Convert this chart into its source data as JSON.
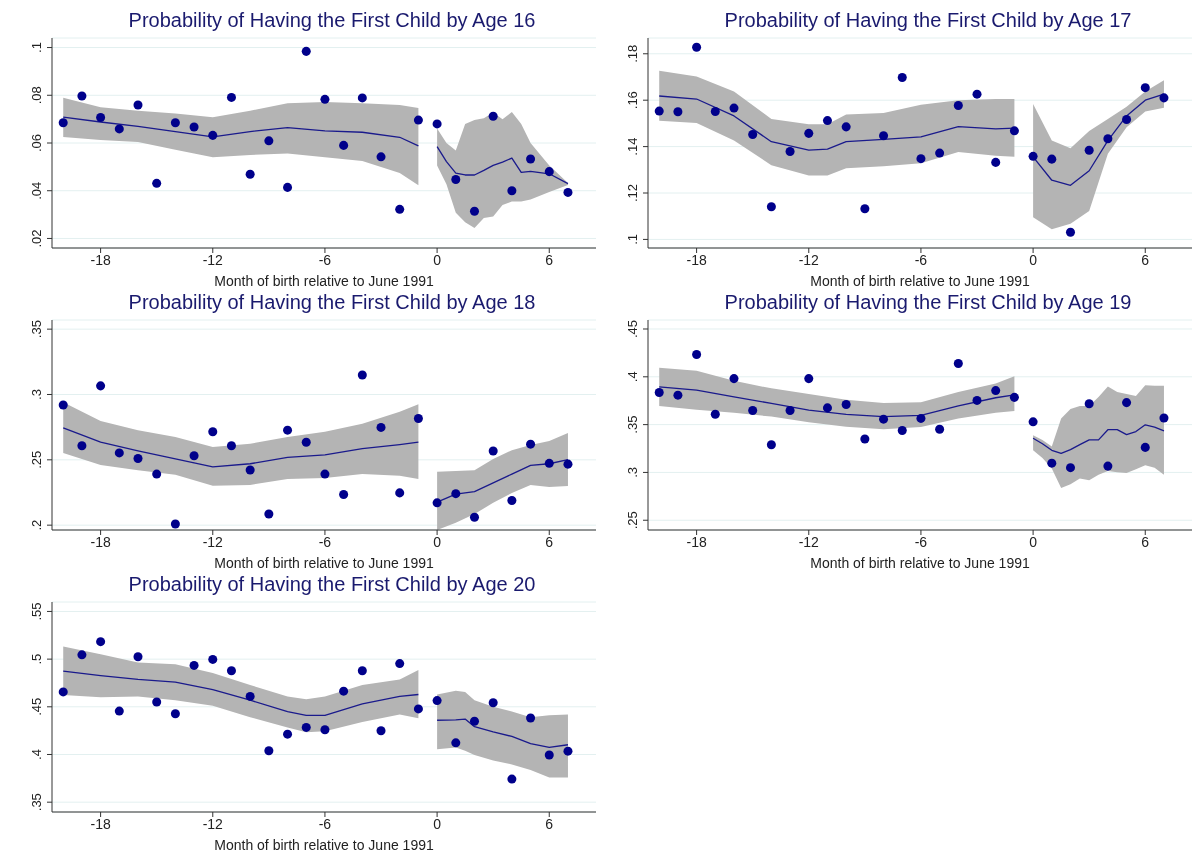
{
  "chart_data": [
    {
      "type": "scatter",
      "title": "Probability of Having the First Child by Age 16",
      "xlabel": "Month of birth relative to June 1991",
      "xlim": [
        -20.6,
        8.5
      ],
      "xticks": [
        -18,
        -12,
        -6,
        0,
        6
      ],
      "ylim": [
        0.016,
        0.104
      ],
      "yticks": [
        {
          "value": 0.02,
          "label": ".02"
        },
        {
          "value": 0.04,
          "label": ".04"
        },
        {
          "value": 0.06,
          "label": ".06"
        },
        {
          "value": 0.08,
          "label": ".08"
        },
        {
          "value": 0.1,
          "label": ".1"
        }
      ],
      "grid": "y",
      "legend": false,
      "series": [
        {
          "type": "line",
          "color": "#1a1a8c",
          "marker": "none",
          "line_style": "solid",
          "x": [
            -20,
            -18,
            -16,
            -14,
            -12,
            -10,
            -8,
            -6,
            -4,
            -2,
            -1
          ],
          "values": [
            0.0708,
            0.0688,
            0.067,
            0.0648,
            0.0626,
            0.0648,
            0.0664,
            0.0651,
            0.0645,
            0.0624,
            0.0588
          ],
          "lower": [
            0.0625,
            0.0613,
            0.0604,
            0.0572,
            0.054,
            0.055,
            0.0556,
            0.054,
            0.0525,
            0.0474,
            0.0423
          ],
          "upper": [
            0.079,
            0.075,
            0.0735,
            0.0724,
            0.0708,
            0.0735,
            0.0767,
            0.0772,
            0.0767,
            0.0759,
            0.0747
          ]
        },
        {
          "type": "line",
          "color": "#1a1a8c",
          "marker": "none",
          "line_style": "solid",
          "x": [
            0,
            0.5,
            1,
            1.5,
            2,
            2.5,
            3,
            3.5,
            4,
            4.5,
            5,
            6,
            7
          ],
          "values": [
            0.0585,
            0.0522,
            0.0474,
            0.0466,
            0.0466,
            0.0485,
            0.0506,
            0.052,
            0.0537,
            0.0477,
            0.0481,
            0.0471,
            0.043
          ],
          "lower": [
            0.0506,
            0.0427,
            0.0308,
            0.0268,
            0.0244,
            0.0286,
            0.0292,
            0.034,
            0.0355,
            0.0355,
            0.0363,
            0.0395,
            0.0424
          ],
          "upper": [
            0.0661,
            0.06,
            0.0569,
            0.068,
            0.0696,
            0.0704,
            0.0728,
            0.07,
            0.073,
            0.068,
            0.06,
            0.0506,
            0.0432
          ]
        },
        {
          "color": "#00008b",
          "marker": "circle",
          "x": [
            -20,
            -19,
            -18,
            -17,
            -16,
            -15,
            -14,
            -13,
            -12,
            -11,
            -10,
            -9,
            -8,
            -7,
            -6,
            -5,
            -4,
            -3,
            -2,
            -1,
            0,
            1,
            2,
            3,
            4,
            5,
            6,
            7
          ],
          "values": [
            0.0685,
            0.0797,
            0.0707,
            0.0659,
            0.0759,
            0.0431,
            0.0685,
            0.0667,
            0.0632,
            0.0791,
            0.0469,
            0.0609,
            0.0414,
            0.0984,
            0.0783,
            0.059,
            0.0789,
            0.0542,
            0.0322,
            0.0696,
            0.068,
            0.0447,
            0.0314,
            0.0712,
            0.04,
            0.0533,
            0.048,
            0.0393
          ]
        }
      ]
    },
    {
      "type": "scatter",
      "title": "Probability of Having the First Child by Age 17",
      "xlabel": "Month of birth relative to June 1991",
      "xlim": [
        -20.6,
        8.5
      ],
      "xticks": [
        -18,
        -12,
        -6,
        0,
        6
      ],
      "ylim": [
        0.0963,
        0.1868
      ],
      "yticks": [
        {
          "value": 0.1,
          "label": ".1"
        },
        {
          "value": 0.12,
          "label": ".12"
        },
        {
          "value": 0.14,
          "label": ".14"
        },
        {
          "value": 0.16,
          "label": ".16"
        },
        {
          "value": 0.18,
          "label": ".18"
        }
      ],
      "grid": "y",
      "legend": false,
      "series": [
        {
          "type": "line",
          "color": "#1a1a8c",
          "marker": "none",
          "line_style": "solid",
          "x": [
            -20,
            -18,
            -16,
            -14,
            -12,
            -11,
            -10,
            -8,
            -6,
            -4,
            -2,
            -1
          ],
          "values": [
            0.1618,
            0.1605,
            0.1532,
            0.1421,
            0.1385,
            0.1389,
            0.1421,
            0.1431,
            0.1442,
            0.1486,
            0.1476,
            0.148
          ],
          "lower": [
            0.1511,
            0.1502,
            0.1426,
            0.132,
            0.1275,
            0.1275,
            0.1307,
            0.1315,
            0.1328,
            0.1377,
            0.1361,
            0.1356
          ],
          "upper": [
            0.1727,
            0.1702,
            0.1637,
            0.1519,
            0.1496,
            0.1496,
            0.1538,
            0.1545,
            0.158,
            0.16,
            0.1605,
            0.1605
          ]
        },
        {
          "type": "line",
          "color": "#1a1a8c",
          "marker": "none",
          "line_style": "solid",
          "x": [
            0,
            1,
            2,
            3,
            4,
            5,
            6,
            7
          ],
          "values": [
            0.1356,
            0.1255,
            0.1233,
            0.1296,
            0.1426,
            0.1532,
            0.16,
            0.1626
          ],
          "lower": [
            0.1096,
            0.1044,
            0.1068,
            0.1122,
            0.1369,
            0.1483,
            0.1551,
            0.1567
          ],
          "upper": [
            0.1584,
            0.1426,
            0.1393,
            0.1467,
            0.1519,
            0.1572,
            0.1637,
            0.1686
          ]
        },
        {
          "color": "#00008b",
          "marker": "circle",
          "x": [
            -20,
            -19,
            -18,
            -17,
            -16,
            -15,
            -14,
            -13,
            -12,
            -11,
            -10,
            -9,
            -8,
            -7,
            -6,
            -5,
            -4,
            -3,
            -2,
            -1,
            0,
            1,
            2,
            3,
            4,
            5,
            6,
            7
          ],
          "values": [
            0.1553,
            0.155,
            0.1828,
            0.1551,
            0.1566,
            0.1452,
            0.1141,
            0.1379,
            0.1457,
            0.1512,
            0.1485,
            0.1132,
            0.1447,
            0.1698,
            0.1348,
            0.1372,
            0.1577,
            0.1626,
            0.1332,
            0.1468,
            0.1358,
            0.1346,
            0.1031,
            0.1384,
            0.1434,
            0.1517,
            0.1654,
            0.161
          ]
        }
      ]
    },
    {
      "type": "scatter",
      "title": "Probability of Having the First Child by Age 18",
      "xlabel": "Month of birth relative to June 1991",
      "xlim": [
        -20.6,
        8.5
      ],
      "xticks": [
        -18,
        -12,
        -6,
        0,
        6
      ],
      "ylim": [
        0.1963,
        0.357
      ],
      "yticks": [
        {
          "value": 0.2,
          "label": ".2"
        },
        {
          "value": 0.25,
          "label": ".25"
        },
        {
          "value": 0.3,
          "label": ".3"
        },
        {
          "value": 0.35,
          "label": ".35"
        }
      ],
      "grid": "y",
      "legend": false,
      "series": [
        {
          "type": "line",
          "color": "#1a1a8c",
          "marker": "none",
          "line_style": "solid",
          "x": [
            -20,
            -18,
            -16,
            -14,
            -12,
            -10,
            -8,
            -6,
            -4,
            -2,
            -1
          ],
          "values": [
            0.2745,
            0.2635,
            0.2568,
            0.2507,
            0.2446,
            0.247,
            0.2519,
            0.2538,
            0.2586,
            0.2617,
            0.2635
          ],
          "lower": [
            0.2553,
            0.2461,
            0.2421,
            0.2385,
            0.2302,
            0.2308,
            0.2354,
            0.236,
            0.2391,
            0.2379,
            0.2354
          ],
          "upper": [
            0.2941,
            0.2797,
            0.2727,
            0.2675,
            0.2599,
            0.2623,
            0.2675,
            0.2715,
            0.2776,
            0.2868,
            0.2926
          ]
        },
        {
          "type": "line",
          "color": "#1a1a8c",
          "marker": "none",
          "line_style": "solid",
          "x": [
            0,
            1,
            2,
            3,
            4,
            5,
            6,
            7
          ],
          "values": [
            0.2177,
            0.2238,
            0.2257,
            0.2324,
            0.2391,
            0.2458,
            0.247,
            0.2501
          ],
          "lower": [
            0.1963,
            0.2018,
            0.2085,
            0.2171,
            0.2247,
            0.2308,
            0.2293,
            0.2299
          ],
          "upper": [
            0.2409,
            0.2415,
            0.2421,
            0.2507,
            0.2574,
            0.2614,
            0.2645,
            0.2706
          ]
        },
        {
          "color": "#00008b",
          "marker": "circle",
          "x": [
            -20,
            -19,
            -18,
            -17,
            -16,
            -15,
            -14,
            -13,
            -12,
            -11,
            -10,
            -9,
            -8,
            -7,
            -6,
            -5,
            -4,
            -3,
            -2,
            -1,
            0,
            1,
            2,
            3,
            4,
            5,
            6,
            7
          ],
          "values": [
            0.292,
            0.2608,
            0.3066,
            0.2553,
            0.251,
            0.2391,
            0.2009,
            0.2531,
            0.2715,
            0.2608,
            0.2422,
            0.2085,
            0.2727,
            0.2635,
            0.2391,
            0.2235,
            0.3149,
            0.2748,
            0.2247,
            0.2816,
            0.2171,
            0.2241,
            0.2061,
            0.2568,
            0.2189,
            0.262,
            0.2473,
            0.2467
          ]
        }
      ]
    },
    {
      "type": "scatter",
      "title": "Probability of Having the First Child by Age 19",
      "xlabel": "Month of birth relative to June 1991",
      "xlim": [
        -20.6,
        8.5
      ],
      "xticks": [
        -18,
        -12,
        -6,
        0,
        6
      ],
      "ylim": [
        0.2398,
        0.4594
      ],
      "yticks": [
        {
          "value": 0.25,
          "label": ".25"
        },
        {
          "value": 0.3,
          "label": ".3"
        },
        {
          "value": 0.35,
          "label": ".35"
        },
        {
          "value": 0.4,
          "label": ".4"
        },
        {
          "value": 0.45,
          "label": ".45"
        }
      ],
      "grid": "y",
      "legend": false,
      "series": [
        {
          "type": "line",
          "color": "#1a1a8c",
          "marker": "none",
          "line_style": "solid",
          "x": [
            -20,
            -18,
            -16,
            -14,
            -12,
            -10,
            -8,
            -6,
            -4,
            -2,
            -1
          ],
          "values": [
            0.3895,
            0.386,
            0.3789,
            0.3722,
            0.3651,
            0.3608,
            0.3584,
            0.3596,
            0.3695,
            0.3781,
            0.3812
          ],
          "lower": [
            0.3695,
            0.3655,
            0.3624,
            0.3584,
            0.3525,
            0.3478,
            0.3451,
            0.3474,
            0.3565,
            0.3624,
            0.3643
          ],
          "upper": [
            0.4095,
            0.4064,
            0.3958,
            0.3879,
            0.382,
            0.3761,
            0.3726,
            0.3734,
            0.384,
            0.393,
            0.4005
          ]
        },
        {
          "type": "line",
          "color": "#1a1a8c",
          "marker": "none",
          "line_style": "solid",
          "x": [
            0,
            0.5,
            1,
            1.5,
            2,
            2.5,
            3,
            3.5,
            4,
            4.5,
            5,
            5.5,
            6,
            6.5,
            7
          ],
          "values": [
            0.3357,
            0.33,
            0.3231,
            0.32,
            0.3239,
            0.329,
            0.3341,
            0.3341,
            0.3447,
            0.3447,
            0.3396,
            0.3427,
            0.3498,
            0.3474,
            0.3435
          ],
          "lower": [
            0.3231,
            0.315,
            0.3042,
            0.2838,
            0.2877,
            0.2936,
            0.2917,
            0.2975,
            0.3015,
            0.3003,
            0.2995,
            0.3034,
            0.3074,
            0.305,
            0.2975
          ],
          "upper": [
            0.339,
            0.334,
            0.327,
            0.3565,
            0.3663,
            0.3694,
            0.3694,
            0.3789,
            0.3899,
            0.384,
            0.382,
            0.38,
            0.3911,
            0.3907,
            0.3907
          ]
        },
        {
          "color": "#00008b",
          "marker": "circle",
          "x": [
            -20,
            -19,
            -18,
            -17,
            -16,
            -15,
            -14,
            -13,
            -12,
            -11,
            -10,
            -9,
            -8,
            -7,
            -6,
            -5,
            -4,
            -3,
            -2,
            -1,
            0,
            1,
            2,
            3,
            4,
            5,
            6,
            7
          ],
          "values": [
            0.3836,
            0.3808,
            0.4233,
            0.3608,
            0.3981,
            0.3647,
            0.329,
            0.3647,
            0.3981,
            0.3675,
            0.371,
            0.3349,
            0.3557,
            0.3439,
            0.3565,
            0.3451,
            0.4139,
            0.3753,
            0.3856,
            0.3785,
            0.3529,
            0.3097,
            0.305,
            0.3718,
            0.3066,
            0.373,
            0.3262,
            0.3569
          ]
        }
      ]
    },
    {
      "type": "scatter",
      "title": "Probability of Having the First Child by Age 20",
      "xlabel": "Month of birth relative to June 1991",
      "xlim": [
        -20.6,
        8.5
      ],
      "xticks": [
        -18,
        -12,
        -6,
        0,
        6
      ],
      "ylim": [
        0.3397,
        0.5599
      ],
      "yticks": [
        {
          "value": 0.35,
          "label": ".35"
        },
        {
          "value": 0.4,
          "label": ".4"
        },
        {
          "value": 0.45,
          "label": ".45"
        },
        {
          "value": 0.5,
          "label": ".5"
        },
        {
          "value": 0.55,
          "label": ".55"
        }
      ],
      "grid": "y",
      "legend": false,
      "series": [
        {
          "type": "line",
          "color": "#1a1a8c",
          "marker": "none",
          "line_style": "solid",
          "x": [
            -20,
            -18,
            -16,
            -14,
            -12,
            -10,
            -8,
            -7,
            -6,
            -4,
            -2,
            -1
          ],
          "values": [
            0.4874,
            0.4827,
            0.4787,
            0.4759,
            0.468,
            0.4569,
            0.445,
            0.4411,
            0.4411,
            0.453,
            0.4609,
            0.4629
          ],
          "lower": [
            0.4625,
            0.4601,
            0.4609,
            0.4569,
            0.451,
            0.4391,
            0.4284,
            0.4233,
            0.4244,
            0.434,
            0.4419,
            0.4379
          ],
          "upper": [
            0.5132,
            0.5052,
            0.4965,
            0.4946,
            0.4854,
            0.4728,
            0.4609,
            0.4578,
            0.4609,
            0.4728,
            0.4787,
            0.4886
          ]
        },
        {
          "type": "line",
          "color": "#1a1a8c",
          "marker": "none",
          "line_style": "solid",
          "x": [
            0,
            1,
            1.5,
            2,
            3,
            4,
            5,
            6,
            7
          ],
          "values": [
            0.4359,
            0.4363,
            0.4371,
            0.4292,
            0.4237,
            0.4189,
            0.4114,
            0.4074,
            0.4102
          ],
          "lower": [
            0.4054,
            0.4074,
            0.404,
            0.3995,
            0.3936,
            0.3896,
            0.3837,
            0.3758,
            0.3758
          ],
          "upper": [
            0.4629,
            0.4668,
            0.4656,
            0.4569,
            0.45,
            0.445,
            0.4391,
            0.4411,
            0.4419
          ]
        },
        {
          "color": "#00008b",
          "marker": "circle",
          "x": [
            -20,
            -19,
            -18,
            -17,
            -16,
            -15,
            -14,
            -13,
            -12,
            -11,
            -10,
            -9,
            -8,
            -7,
            -6,
            -5,
            -4,
            -3,
            -2,
            -1,
            0,
            1,
            2,
            3,
            4,
            5,
            6,
            7
          ],
          "values": [
            0.4656,
            0.5045,
            0.5183,
            0.4455,
            0.5025,
            0.455,
            0.4427,
            0.4934,
            0.4997,
            0.4878,
            0.4609,
            0.4039,
            0.4213,
            0.4284,
            0.426,
            0.4664,
            0.4878,
            0.4249,
            0.4953,
            0.4478,
            0.4565,
            0.4122,
            0.4348,
            0.4542,
            0.3742,
            0.4383,
            0.3995,
            0.4035
          ]
        }
      ]
    }
  ]
}
